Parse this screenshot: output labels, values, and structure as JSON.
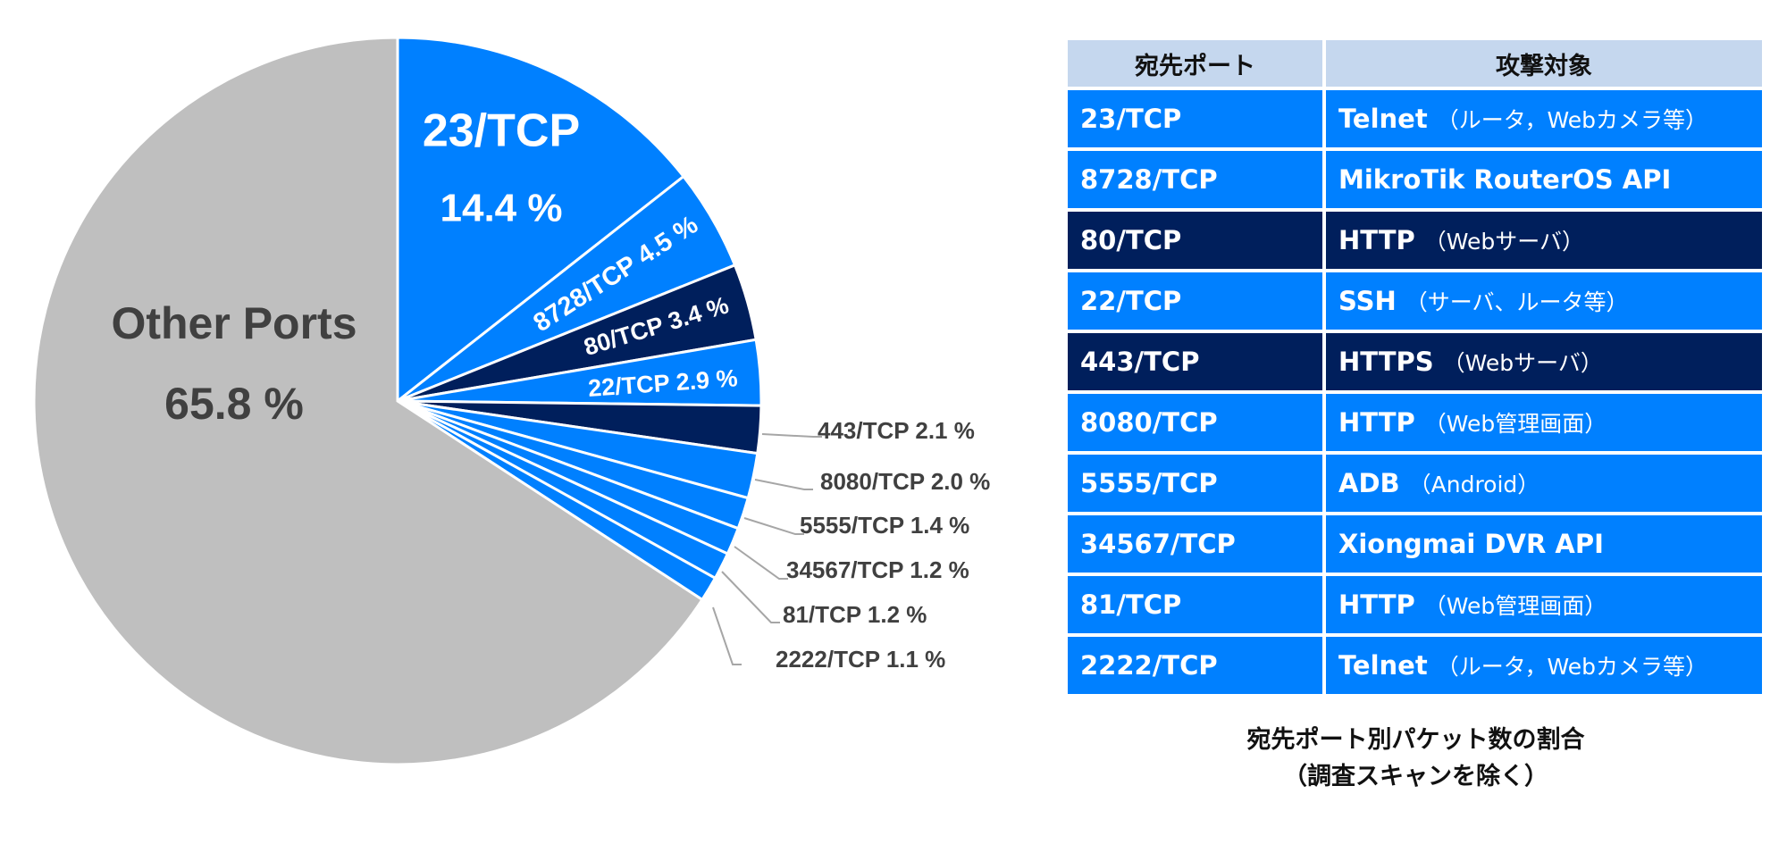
{
  "chart_data": {
    "type": "pie",
    "title": "宛先ポート別パケット数の割合",
    "subtitle": "（調査スキャンを除く）",
    "start": "top",
    "direction": "clockwise",
    "slices": [
      {
        "label": "23/TCP",
        "value": 14.4,
        "pct_text": "14.4 %",
        "color": "#0080FF"
      },
      {
        "label": "8728/TCP",
        "value": 4.5,
        "pct_text": "4.5 %",
        "color": "#0080FF"
      },
      {
        "label": "80/TCP",
        "value": 3.4,
        "pct_text": "3.4 %",
        "color": "#001F5C"
      },
      {
        "label": "22/TCP",
        "value": 2.9,
        "pct_text": "2.9 %",
        "color": "#0080FF"
      },
      {
        "label": "443/TCP",
        "value": 2.1,
        "pct_text": "2.1 %",
        "color": "#001F5C"
      },
      {
        "label": "8080/TCP",
        "value": 2.0,
        "pct_text": "2.0 %",
        "color": "#0080FF"
      },
      {
        "label": "5555/TCP",
        "value": 1.4,
        "pct_text": "1.4 %",
        "color": "#0080FF"
      },
      {
        "label": "34567/TCP",
        "value": 1.2,
        "pct_text": "1.2 %",
        "color": "#0080FF"
      },
      {
        "label": "81/TCP",
        "value": 1.2,
        "pct_text": "1.2 %",
        "color": "#0080FF"
      },
      {
        "label": "2222/TCP",
        "value": 1.1,
        "pct_text": "1.1 %",
        "color": "#0080FF"
      },
      {
        "label": "Other Ports",
        "value": 65.8,
        "pct_text": "65.8 %",
        "color": "#BFBFBF"
      }
    ]
  },
  "table": {
    "headers": [
      "宛先ポート",
      "攻撃対象"
    ],
    "rows": [
      {
        "port": "23/TCP",
        "target": "Telnet",
        "note": "（ルータ，Webカメラ等）",
        "style": "blue"
      },
      {
        "port": "8728/TCP",
        "target": "MikroTik RouterOS API",
        "note": "",
        "style": "blue"
      },
      {
        "port": "80/TCP",
        "target": "HTTP",
        "note": "（Webサーバ）",
        "style": "navy"
      },
      {
        "port": "22/TCP",
        "target": "SSH",
        "note": "（サーバ、ルータ等）",
        "style": "blue"
      },
      {
        "port": "443/TCP",
        "target": "HTTPS",
        "note": "（Webサーバ）",
        "style": "navy"
      },
      {
        "port": "8080/TCP",
        "target": "HTTP",
        "note": "（Web管理画面）",
        "style": "blue"
      },
      {
        "port": "5555/TCP",
        "target": "ADB",
        "note": "（Android）",
        "style": "blue"
      },
      {
        "port": "34567/TCP",
        "target": "Xiongmai DVR API",
        "note": "",
        "style": "blue"
      },
      {
        "port": "81/TCP",
        "target": "HTTP",
        "note": "（Web管理画面）",
        "style": "blue"
      },
      {
        "port": "2222/TCP",
        "target": "Telnet",
        "note": "（ルータ，Webカメラ等）",
        "style": "blue"
      }
    ]
  }
}
